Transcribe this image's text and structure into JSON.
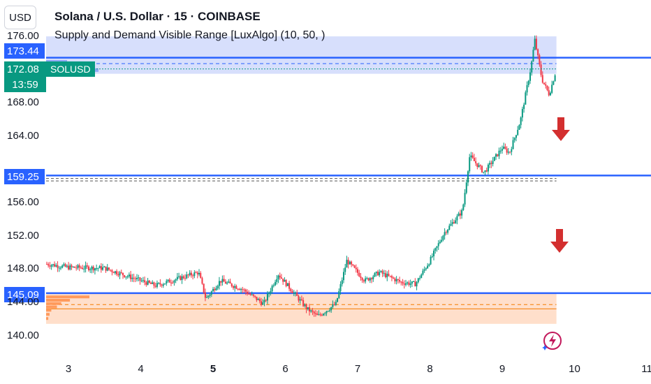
{
  "header": {
    "title": "Solana / U.S. Dollar · 15 · COINBASE",
    "indicator": "Supply and Demand Visible Range [LuxAlgo] (10, 50, )"
  },
  "currency_button": "USD",
  "symbol_tag": "SOLUSD",
  "price_tags": {
    "level_top": "173.44",
    "last_price": "172.08",
    "countdown": "13:59",
    "level_mid": "159.25",
    "level_low": "145.09"
  },
  "colors": {
    "up": "#089981",
    "down": "#f23645",
    "level_line": "#2962ff",
    "supply_zone": "#cdd7fb",
    "demand_zone": "#ffd9c2",
    "arrow": "#d32f2f"
  },
  "icons": [
    "arrow-down-icon",
    "arrow-down-icon",
    "lightning-icon"
  ],
  "chart_data": {
    "type": "candlestick",
    "title": "Solana / U.S. Dollar · 15 · COINBASE",
    "y_tick_labels": [
      "176.00",
      "168.00",
      "164.00",
      "156.00",
      "152.00",
      "148.00",
      "144.00",
      "140.00"
    ],
    "x_tick_labels": [
      "3",
      "4",
      "5",
      "6",
      "7",
      "8",
      "9",
      "10",
      "11"
    ],
    "ylim": [
      138.5,
      176.3
    ],
    "xlim": [
      2.7,
      11.1
    ],
    "price_path": [
      [
        2.7,
        148.6
      ],
      [
        3.0,
        148.2
      ],
      [
        3.5,
        148.1
      ],
      [
        3.8,
        147.2
      ],
      [
        4.2,
        146.0
      ],
      [
        4.5,
        146.8
      ],
      [
        4.8,
        147.6
      ],
      [
        4.9,
        144.4
      ],
      [
        5.1,
        146.6
      ],
      [
        5.4,
        145.6
      ],
      [
        5.7,
        143.8
      ],
      [
        5.9,
        147.4
      ],
      [
        6.3,
        143.2
      ],
      [
        6.45,
        142.3
      ],
      [
        6.7,
        143.8
      ],
      [
        6.85,
        149.0
      ],
      [
        7.1,
        146.6
      ],
      [
        7.3,
        147.6
      ],
      [
        7.6,
        146.4
      ],
      [
        7.8,
        146.2
      ],
      [
        8.0,
        149.0
      ],
      [
        8.2,
        152.4
      ],
      [
        8.45,
        155.0
      ],
      [
        8.55,
        161.6
      ],
      [
        8.75,
        159.6
      ],
      [
        8.9,
        161.4
      ],
      [
        9.0,
        162.6
      ],
      [
        9.1,
        162.0
      ],
      [
        9.25,
        165.8
      ],
      [
        9.3,
        168.0
      ],
      [
        9.4,
        172.4
      ],
      [
        9.45,
        175.6
      ],
      [
        9.55,
        170.8
      ],
      [
        9.65,
        169.0
      ],
      [
        9.75,
        172.1
      ]
    ],
    "levels": [
      {
        "label": "173.44",
        "value": 173.44
      },
      {
        "label": "159.25",
        "value": 159.25
      },
      {
        "label": "145.09",
        "value": 145.09
      }
    ],
    "supply_zone": {
      "low": 171.5,
      "high": 176.0,
      "poc": 172.72
    },
    "demand_zone": {
      "low": 141.4,
      "high": 145.0,
      "poc": 143.72,
      "avg": 143.2
    },
    "mid_range_dashed": [
      158.6,
      158.9
    ],
    "last_price": 172.08
  }
}
